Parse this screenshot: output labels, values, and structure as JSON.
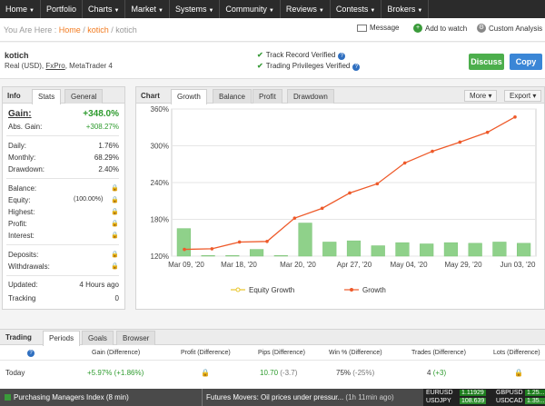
{
  "nav": {
    "items": [
      "Home",
      "Portfolio",
      "Charts",
      "Market",
      "Systems",
      "Community",
      "Reviews",
      "Contests",
      "Brokers"
    ]
  },
  "breadcrumb": {
    "prefix": "You Are Here :",
    "home": "Home",
    "user": "kotich",
    "current": "kotich"
  },
  "actions": {
    "message": "Message",
    "watch": "Add to watch",
    "custom": "Custom Analysis"
  },
  "account": {
    "name": "kotich",
    "type": "Real (USD),",
    "broker": "FxPro",
    "platform": ", MetaTrader 4"
  },
  "verify": {
    "track": "Track Record Verified",
    "privileges": "Trading Privileges Verified"
  },
  "buttons": {
    "discuss": "Discuss",
    "copy": "Copy"
  },
  "info": {
    "title": "Info",
    "tabs": [
      "Stats",
      "General"
    ],
    "gain_label": "Gain:",
    "gain_value": "+348.0%",
    "abs_label": "Abs. Gain:",
    "abs_value": "+308.27%",
    "stats": [
      {
        "label": "Daily:",
        "value": "1.76%"
      },
      {
        "label": "Monthly:",
        "value": "68.29%"
      },
      {
        "label": "Drawdown:",
        "value": "2.40%"
      }
    ],
    "locked": [
      {
        "label": "Balance:",
        "extra": ""
      },
      {
        "label": "Equity:",
        "extra": "(100.00%)"
      },
      {
        "label": "Highest:",
        "extra": ""
      },
      {
        "label": "Profit:",
        "extra": ""
      },
      {
        "label": "Interest:",
        "extra": ""
      }
    ],
    "locked2": [
      {
        "label": "Deposits:"
      },
      {
        "label": "Withdrawals:"
      }
    ],
    "updated_label": "Updated:",
    "updated_value": "4 Hours ago",
    "tracking_label": "Tracking",
    "tracking_value": "0"
  },
  "chartpanel": {
    "title": "Chart",
    "tabs": [
      "Growth",
      "Balance",
      "Profit",
      "Drawdown"
    ],
    "more": "More",
    "export": "Export"
  },
  "chart_data": {
    "type": "bar+line",
    "title": "Growth",
    "yticks": [
      "360%",
      "300%",
      "240%",
      "180%",
      "120%"
    ],
    "ylim": [
      120,
      360
    ],
    "xticks": [
      "Mar 09, '20",
      "Mar 18, '20",
      "Mar 20, '20",
      "Apr 27, '20",
      "May 04, '20",
      "May 29, '20",
      "Jun 03, '20"
    ],
    "bars": [
      165,
      121,
      121,
      131,
      121,
      174,
      143,
      145,
      137,
      142,
      140,
      142,
      141,
      143,
      141
    ],
    "growth_line": [
      131,
      132,
      143,
      144,
      182,
      198,
      223,
      238,
      272,
      291,
      306,
      322,
      347
    ],
    "legend": [
      "Equity Growth",
      "Growth"
    ],
    "colors": {
      "bar": "#8fd18a",
      "line": "#ee5a2a",
      "equity": "#e8c52a"
    }
  },
  "trading": {
    "title": "Trading",
    "tabs": [
      "Periods",
      "Goals",
      "Browser"
    ],
    "headers": [
      "Gain (Difference)",
      "Profit (Difference)",
      "Pips (Difference)",
      "Win % (Difference)",
      "Trades (Difference)",
      "Lots (Difference)"
    ],
    "row": {
      "label": "Today",
      "gain": "+5.97%",
      "gain_diff": "(+1.86%)",
      "pips": "10.70",
      "pips_diff": "(-3.7)",
      "win": "75%",
      "win_diff": "(-25%)",
      "trades": "4",
      "trades_diff": "(+3)"
    }
  },
  "ticker": {
    "news1": "Purchasing Managers Index (8 min)",
    "news2": "Futures Movers: Oil prices under pressur...",
    "news2_time": "(1h 11min ago)",
    "pairs": [
      {
        "name": "EURUSD",
        "value": "1.11929"
      },
      {
        "name": "USDJPY",
        "value": "108.639"
      },
      {
        "name": "GBPUSD",
        "value": "1.25..."
      },
      {
        "name": "USDCAD",
        "value": "1.35..."
      }
    ]
  }
}
